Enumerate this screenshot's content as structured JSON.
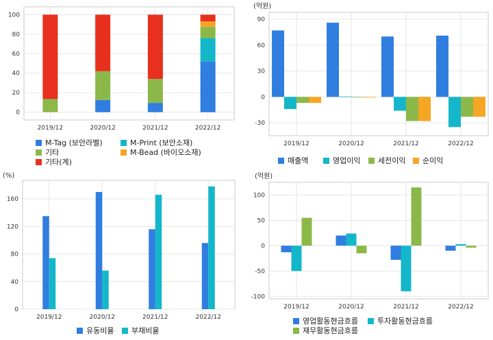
{
  "chart_data": [
    {
      "id": "p1",
      "type": "bar",
      "stacked": true,
      "categories": [
        "2019/12",
        "2020/12",
        "2021/12",
        "2022/12"
      ],
      "ylim": [
        -8,
        108
      ],
      "yticks": [
        0,
        20,
        40,
        60,
        80,
        100
      ],
      "unit": "",
      "series": [
        {
          "name": "M-Tag (보안라벨)",
          "color": "#2f7ee0",
          "values": [
            0,
            12.5,
            9.5,
            52
          ]
        },
        {
          "name": "M-Print (보안소재)",
          "color": "#14b7c9",
          "values": [
            0,
            0,
            0,
            24
          ]
        },
        {
          "name": "기타",
          "color": "#8cb84a",
          "values": [
            13.5,
            29.5,
            24.5,
            11.5
          ]
        },
        {
          "name": "M-Bead (바이오소재)",
          "color": "#f5a623",
          "values": [
            0,
            0,
            0,
            5.5
          ]
        },
        {
          "name": "기타(계)",
          "color": "#e8301e",
          "values": [
            86.5,
            58,
            66,
            7
          ]
        }
      ]
    },
    {
      "id": "p2",
      "type": "bar",
      "stacked": false,
      "categories": [
        "2019/12",
        "2020/12",
        "2021/12",
        "2022/12"
      ],
      "ylim": [
        -45,
        98
      ],
      "yticks": [
        -30,
        0,
        30,
        60,
        90
      ],
      "unit": "(억원)",
      "series": [
        {
          "name": "매출액",
          "color": "#2f7ee0",
          "values": [
            77,
            86,
            70,
            71
          ]
        },
        {
          "name": "영업이익",
          "color": "#14b7c9",
          "values": [
            -14,
            0.5,
            -16,
            -35
          ]
        },
        {
          "name": "세전이익",
          "color": "#8cb84a",
          "values": [
            -7,
            -0.5,
            -28,
            -23
          ]
        },
        {
          "name": "순이익",
          "color": "#f5a623",
          "values": [
            -7,
            -0.5,
            -28,
            -23
          ]
        }
      ]
    },
    {
      "id": "p3",
      "type": "bar",
      "stacked": false,
      "categories": [
        "2019/12",
        "2020/12",
        "2021/12",
        "2022/12"
      ],
      "ylim": [
        0,
        187
      ],
      "yticks": [
        0,
        40,
        80,
        120,
        160
      ],
      "unit": "(%)",
      "series": [
        {
          "name": "유동비율",
          "color": "#2f7ee0",
          "values": [
            135,
            170,
            116,
            96
          ]
        },
        {
          "name": "부채비율",
          "color": "#14b7c9",
          "values": [
            74,
            56,
            166,
            178
          ]
        }
      ]
    },
    {
      "id": "p4",
      "type": "bar",
      "stacked": false,
      "categories": [
        "2019/12",
        "2020/12",
        "2021/12",
        "2022/12"
      ],
      "ylim": [
        -105,
        125
      ],
      "yticks": [
        -100,
        -50,
        0,
        50,
        100
      ],
      "unit": "(억원)",
      "series": [
        {
          "name": "영업활동현금흐름",
          "color": "#2f7ee0",
          "values": [
            -13,
            20,
            -28,
            -10
          ]
        },
        {
          "name": "투자활동현금흐름",
          "color": "#14b7c9",
          "values": [
            -50,
            24,
            -90,
            3
          ]
        },
        {
          "name": "재무활동현금흐름",
          "color": "#8cb84a",
          "values": [
            55,
            -15,
            115,
            -4
          ]
        }
      ]
    }
  ]
}
